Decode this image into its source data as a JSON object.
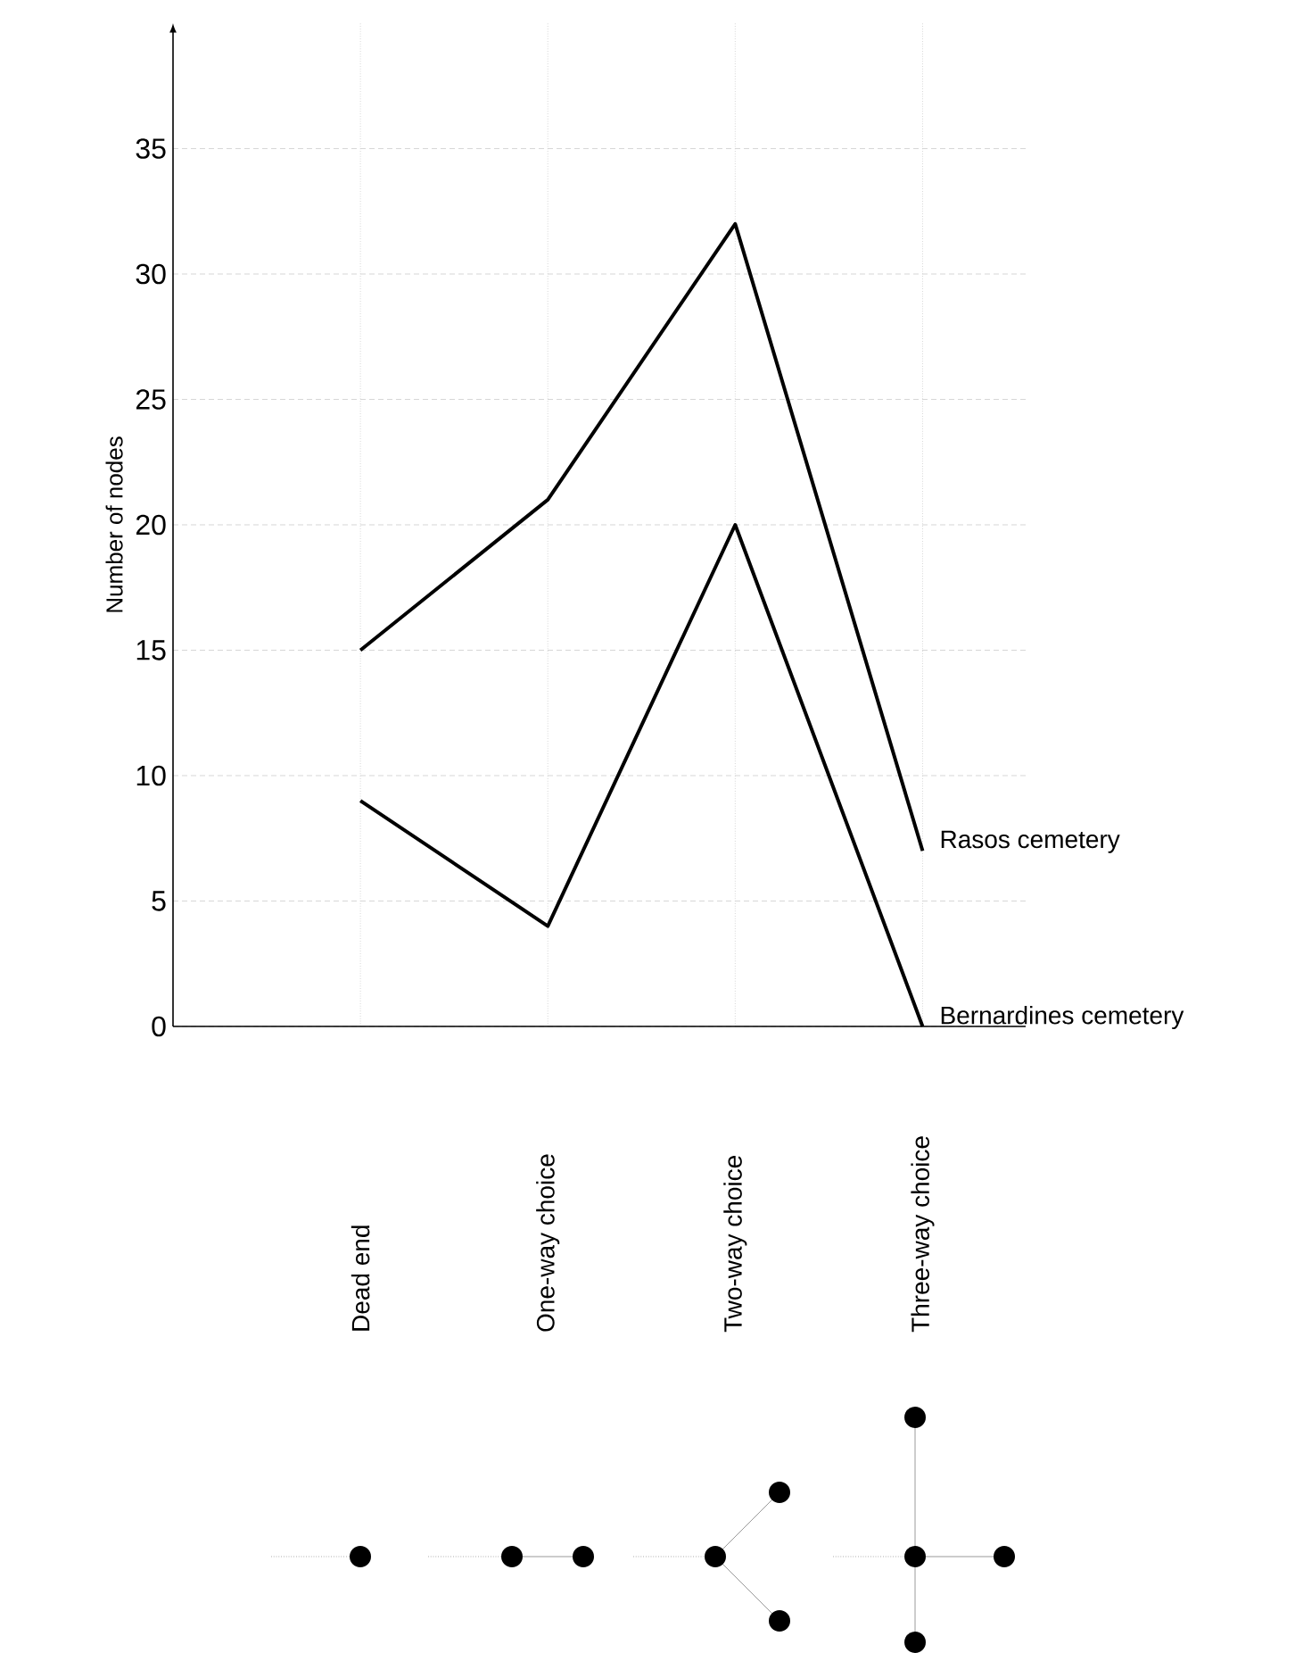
{
  "chart_data": {
    "type": "line",
    "ylabel": "Number of nodes",
    "categories": [
      "Dead end",
      "One-way choice",
      "Two-way choice",
      "Three-way choice"
    ],
    "series": [
      {
        "name": "Rasos cemetery",
        "color": "#000000",
        "values": [
          15,
          21,
          32,
          7
        ]
      },
      {
        "name": "Bernardines cemetery",
        "color": "#000000",
        "values": [
          9,
          4,
          20,
          0
        ]
      }
    ],
    "ylim": [
      0,
      40
    ],
    "yticks": [
      0,
      5,
      10,
      15,
      20,
      25,
      30,
      35
    ],
    "grid": true,
    "marker": "none",
    "line_style": "solid"
  }
}
